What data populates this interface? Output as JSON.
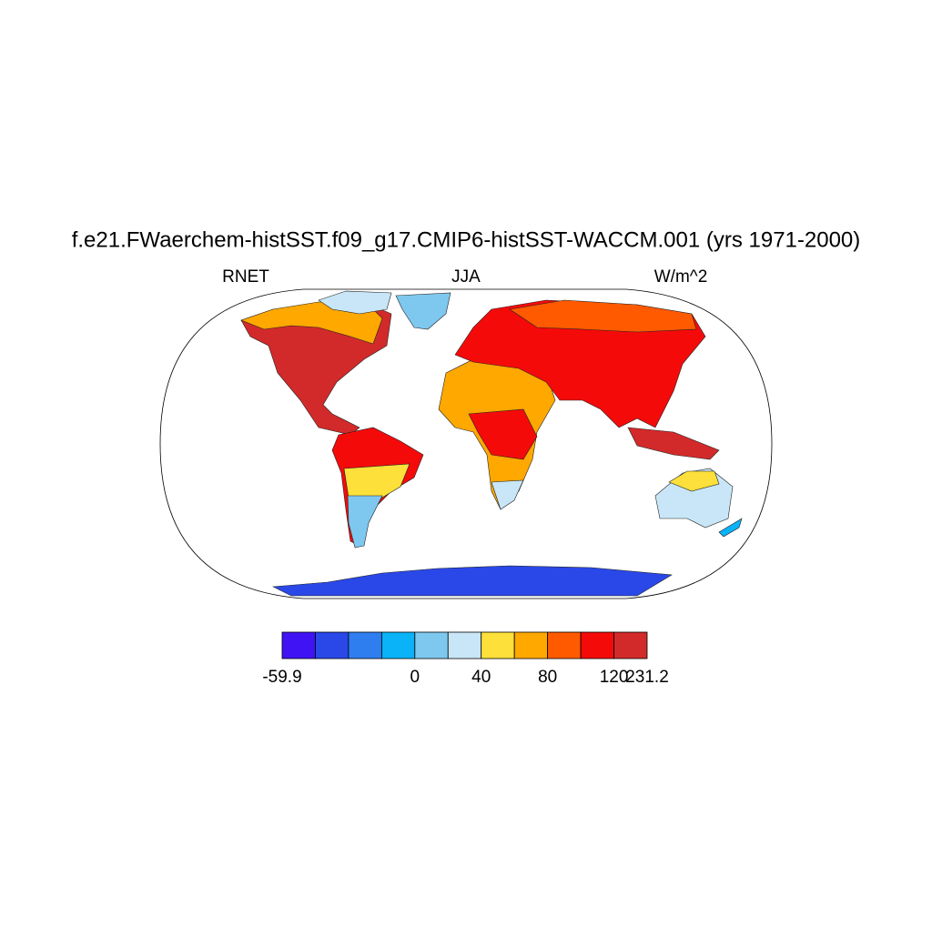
{
  "title": "f.e21.FWaerchem-histSST.f09_g17.CMIP6-histSST-WACCM.001 (yrs 1971-2000)",
  "left_label": "RNET",
  "center_label": "JJA",
  "right_label": "W/m^2",
  "colorbar": {
    "colors": [
      "#3f13f4",
      "#2a48e8",
      "#2f7ef0",
      "#0ab2f7",
      "#7ec8ef",
      "#c8e6f7",
      "#fde03a",
      "#ffa800",
      "#ff5a00",
      "#f50a0a",
      "#d22a2a"
    ],
    "ticks": [
      -59.9,
      0,
      40,
      80,
      120,
      231.2
    ]
  }
}
